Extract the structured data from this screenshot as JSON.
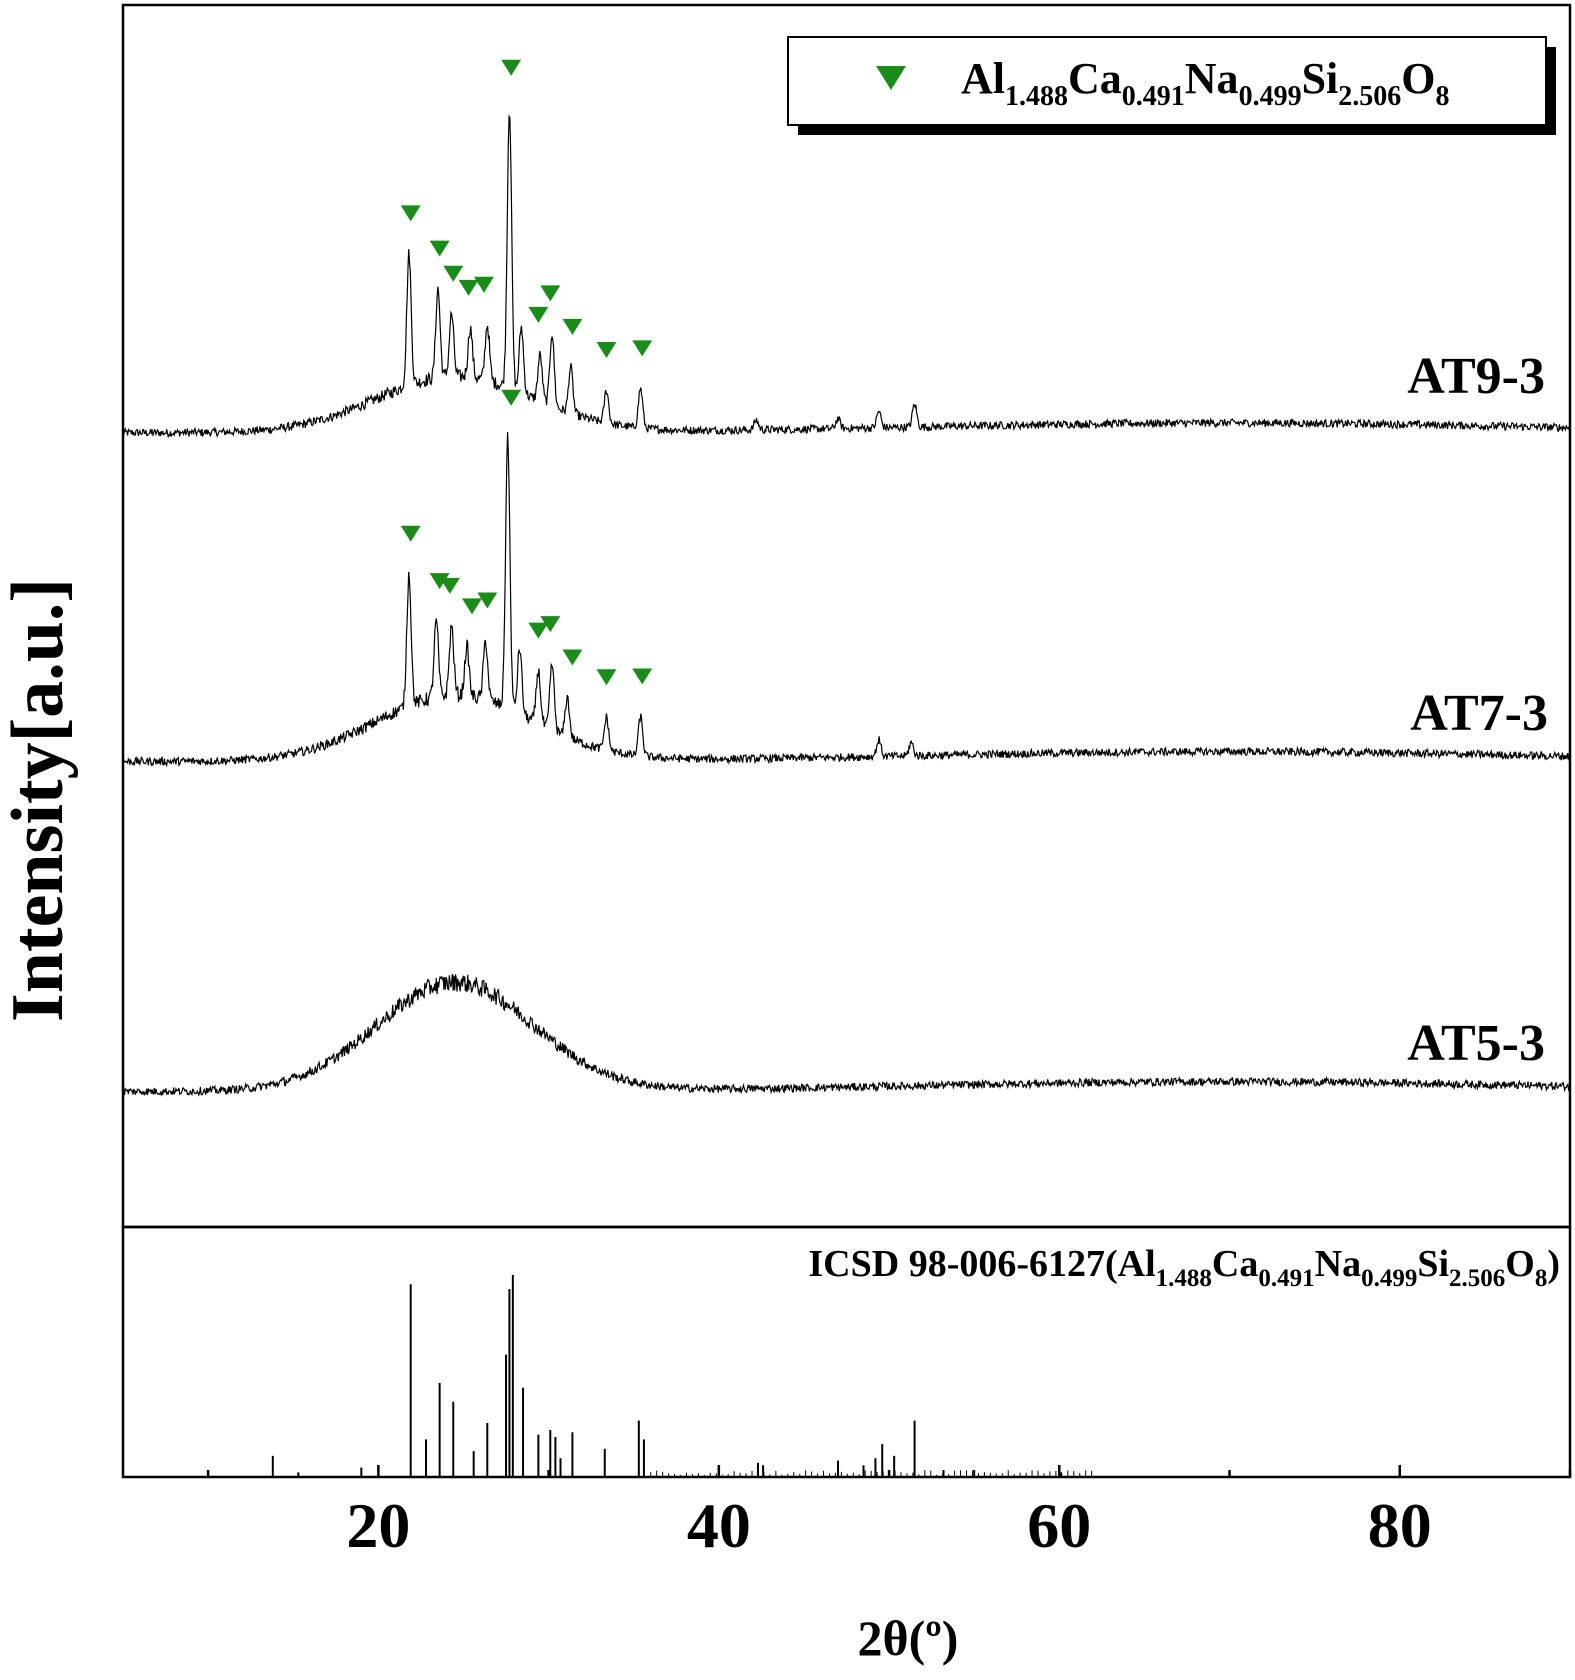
{
  "chart_data": {
    "type": "line",
    "xlabel": "2θ(º)",
    "ylabel": "Intensity[a.u.]",
    "xlim": [
      5,
      90
    ],
    "x_ticks": [
      20,
      40,
      60,
      80
    ],
    "grid": false,
    "legend": {
      "placement": "top-right",
      "marker": "down-triangle",
      "marker_color": "#1a8c1a",
      "formula": [
        {
          "base": "Al",
          "sub": "1.488"
        },
        {
          "base": "Ca",
          "sub": "0.491"
        },
        {
          "base": "Na",
          "sub": "0.499"
        },
        {
          "base": "Si",
          "sub": "2.506"
        },
        {
          "base": "O",
          "sub": "8"
        }
      ]
    },
    "series": [
      {
        "name": "AT9-3",
        "amorphous_hump": {
          "center": 24.5,
          "height": 0.17,
          "width": 6.5
        },
        "background": 0.04,
        "peaks": [
          [
            21.8,
            0.4
          ],
          [
            23.5,
            0.27
          ],
          [
            24.3,
            0.19
          ],
          [
            25.4,
            0.15
          ],
          [
            26.4,
            0.17
          ],
          [
            27.7,
            0.85
          ],
          [
            28.4,
            0.2
          ],
          [
            29.5,
            0.14
          ],
          [
            30.2,
            0.22
          ],
          [
            31.3,
            0.14
          ],
          [
            33.4,
            0.1
          ],
          [
            35.4,
            0.12
          ],
          [
            42.2,
            0.03
          ],
          [
            47.0,
            0.03
          ],
          [
            49.4,
            0.05
          ],
          [
            51.5,
            0.07
          ]
        ],
        "markers_2theta": [
          21.9,
          23.6,
          24.4,
          25.3,
          26.2,
          27.8,
          29.4,
          30.1,
          31.4,
          33.4,
          35.5
        ]
      },
      {
        "name": "AT7-3",
        "amorphous_hump": {
          "center": 24.5,
          "height": 0.2,
          "width": 6.5
        },
        "background": 0.05,
        "peaks": [
          [
            21.8,
            0.4
          ],
          [
            23.4,
            0.23
          ],
          [
            24.3,
            0.21
          ],
          [
            25.2,
            0.15
          ],
          [
            26.3,
            0.18
          ],
          [
            27.6,
            0.82
          ],
          [
            28.3,
            0.2
          ],
          [
            29.4,
            0.16
          ],
          [
            30.2,
            0.2
          ],
          [
            31.1,
            0.12
          ],
          [
            33.4,
            0.1
          ],
          [
            35.4,
            0.12
          ],
          [
            49.4,
            0.05
          ],
          [
            51.3,
            0.04
          ]
        ],
        "markers_2theta": [
          21.9,
          23.6,
          24.2,
          25.5,
          26.4,
          27.8,
          29.4,
          30.1,
          31.4,
          33.4,
          35.5
        ]
      },
      {
        "name": "AT5-3",
        "amorphous_hump": {
          "center": 24.5,
          "height": 0.33,
          "width": 6.5
        },
        "background": 0.05,
        "peaks": [],
        "markers_2theta": []
      }
    ],
    "reference": {
      "label_prefix": "ICSD 98-006-6127(",
      "label_suffix": ")",
      "lines": [
        [
          13.8,
          0.09
        ],
        [
          15.3,
          0.02
        ],
        [
          19.0,
          0.04
        ],
        [
          21.9,
          0.82
        ],
        [
          22.8,
          0.16
        ],
        [
          23.6,
          0.4
        ],
        [
          24.4,
          0.32
        ],
        [
          25.6,
          0.11
        ],
        [
          26.4,
          0.23
        ],
        [
          27.5,
          0.52
        ],
        [
          27.7,
          0.8
        ],
        [
          27.9,
          0.86
        ],
        [
          28.5,
          0.38
        ],
        [
          29.4,
          0.18
        ],
        [
          30.1,
          0.2
        ],
        [
          30.4,
          0.17
        ],
        [
          30.7,
          0.08
        ],
        [
          31.4,
          0.19
        ],
        [
          33.3,
          0.12
        ],
        [
          35.3,
          0.24
        ],
        [
          35.6,
          0.16
        ],
        [
          42.3,
          0.06
        ],
        [
          42.6,
          0.05
        ],
        [
          47.0,
          0.07
        ],
        [
          48.5,
          0.05
        ],
        [
          49.2,
          0.08
        ],
        [
          49.6,
          0.14
        ],
        [
          50.3,
          0.09
        ],
        [
          51.5,
          0.24
        ],
        [
          53.2,
          0.03
        ],
        [
          55.0,
          0.03
        ],
        [
          60.1,
          0.02
        ]
      ]
    },
    "colors": {
      "trace": "#000000",
      "marker": "#1a8c1a"
    }
  }
}
